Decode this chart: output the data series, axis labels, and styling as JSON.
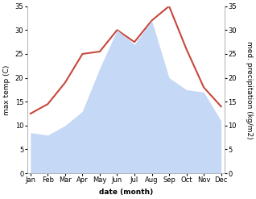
{
  "months": [
    "Jan",
    "Feb",
    "Mar",
    "Apr",
    "May",
    "Jun",
    "Jul",
    "Aug",
    "Sep",
    "Oct",
    "Nov",
    "Dec"
  ],
  "temp": [
    12.5,
    14.5,
    19.0,
    25.0,
    25.5,
    30.0,
    27.5,
    32.0,
    35.0,
    26.0,
    18.0,
    14.0
  ],
  "precip": [
    8.5,
    8.0,
    10.0,
    13.0,
    22.0,
    30.0,
    27.0,
    32.0,
    20.0,
    17.5,
    17.0,
    11.0
  ],
  "temp_color": "#c8473b",
  "precip_fill_color": "#c5d8f5",
  "ylim": [
    0,
    35
  ],
  "xlabel": "date (month)",
  "ylabel_left": "max temp (C)",
  "ylabel_right": "med. precipitation (kg/m2)",
  "bg_color": "#ffffff",
  "yticks": [
    0,
    5,
    10,
    15,
    20,
    25,
    30,
    35
  ],
  "title_fontsize": 7,
  "axis_fontsize": 6.5,
  "tick_fontsize": 6.0,
  "label_fontsize": 6.5
}
